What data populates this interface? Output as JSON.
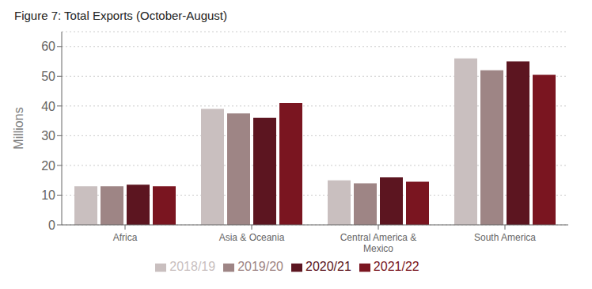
{
  "chart_data": {
    "type": "bar",
    "title": "Figure 7: Total Exports (October-August)",
    "ylabel": "Millions",
    "categories": [
      "Africa",
      "Asia & Oceania",
      "Central America &\nMexico",
      "South America"
    ],
    "series": [
      {
        "name": "2018/19",
        "color": "#c9bfbf",
        "values": [
          13,
          39,
          15,
          56
        ]
      },
      {
        "name": "2019/20",
        "color": "#9e8585",
        "values": [
          13,
          37.5,
          14,
          52
        ]
      },
      {
        "name": "2020/21",
        "color": "#5c1520",
        "values": [
          13.5,
          36,
          16,
          55
        ]
      },
      {
        "name": "2021/22",
        "color": "#7a1520",
        "values": [
          13,
          41,
          14.5,
          50.5
        ]
      }
    ],
    "ylim": [
      0,
      65
    ],
    "yticks": [
      0,
      10,
      20,
      30,
      40,
      50,
      60
    ],
    "grid": true,
    "legend": "bottom"
  }
}
